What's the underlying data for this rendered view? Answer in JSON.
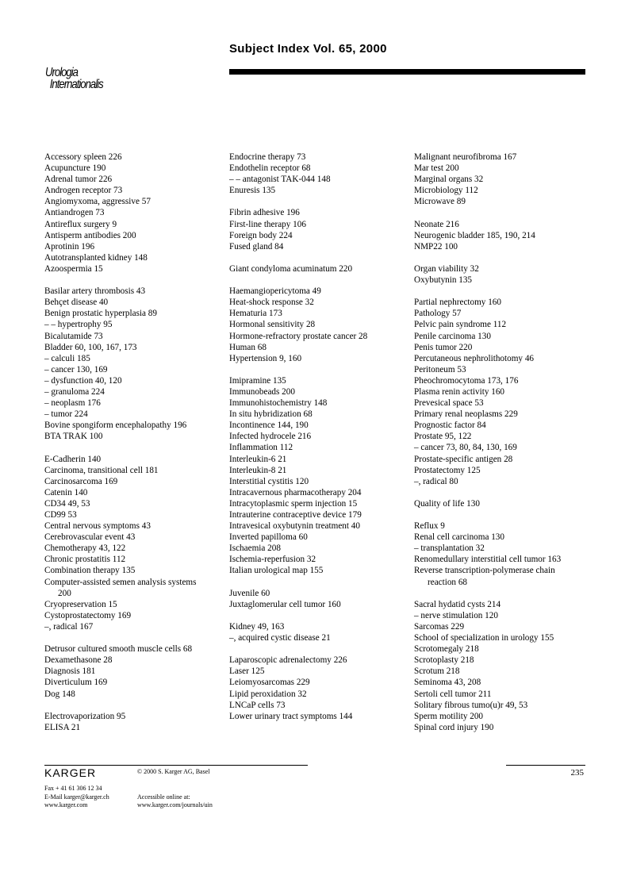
{
  "header": {
    "title": "Subject Index Vol. 65, 2000",
    "journal_logo": [
      "Urologia",
      "Internationalis"
    ]
  },
  "columns": [
    [
      "Accessory spleen  226",
      "Acupuncture  190",
      "Adrenal tumor  226",
      "Androgen receptor  73",
      "Angiomyxoma, aggressive  57",
      "Antiandrogen  73",
      "Antireflux surgery  9",
      "Antisperm antibodies  200",
      "Aprotinin  196",
      "Autotransplanted kidney  148",
      "Azoospermia  15",
      "",
      "Basilar artery thrombosis  43",
      "Behçet disease  40",
      "Benign prostatic hyperplasia  89",
      "–  –  hypertrophy  95",
      "Bicalutamide  73",
      "Bladder  60, 100, 167, 173",
      "–  calculi  185",
      "–  cancer  130, 169",
      "–  dysfunction  40, 120",
      "–  granuloma  224",
      "–  neoplasm  176",
      "–  tumor  224",
      "Bovine spongiform encephalopathy  196",
      "BTA TRAK  100",
      "",
      "E-Cadherin  140",
      "Carcinoma, transitional cell  181",
      "Carcinosarcoma  169",
      "Catenin  140",
      "CD34  49, 53",
      "CD99  53",
      "Central nervous symptoms  43",
      "Cerebrovascular event  43",
      "Chemotherapy  43, 122",
      "Chronic prostatitis  112",
      "Combination therapy  135",
      "Computer-assisted semen analysis systems",
      {
        "cont": "200"
      },
      "Cryopreservation  15",
      "Cystoprostatectomy  169",
      "–,  radical  167",
      "",
      "Detrusor cultured smooth muscle cells  68",
      "Dexamethasone  28",
      "Diagnosis  181",
      "Diverticulum  169",
      "Dog  148",
      "",
      "Electrovaporization  95",
      "ELISA  21"
    ],
    [
      "Endocrine therapy  73",
      "Endothelin receptor  68",
      "–  –  antagonist TAK-044  148",
      "Enuresis  135",
      "",
      "Fibrin adhesive  196",
      "First-line therapy  106",
      "Foreign body  224",
      "Fused gland  84",
      "",
      "Giant condyloma acuminatum  220",
      "",
      "Haemangiopericytoma  49",
      "Heat-shock response  32",
      "Hematuria  173",
      "Hormonal sensitivity  28",
      "Hormone-refractory prostate cancer  28",
      "Human  68",
      "Hypertension  9, 160",
      "",
      "Imipramine  135",
      "Immunobeads  200",
      "Immunohistochemistry  148",
      "In situ hybridization  68",
      "Incontinence  144, 190",
      "Infected hydrocele  216",
      "Inflammation  112",
      "Interleukin-6  21",
      "Interleukin-8  21",
      "Interstitial cystitis  120",
      "Intracavernous pharmacotherapy  204",
      "Intracytoplasmic sperm injection  15",
      "Intrauterine contraceptive device  179",
      "Intravesical oxybutynin treatment  40",
      "Inverted papilloma  60",
      "Ischaemia  208",
      "Ischemia-reperfusion  32",
      "Italian urological map  155",
      "",
      "Juvenile  60",
      "Juxtaglomerular cell tumor  160",
      "",
      "Kidney  49, 163",
      "–,  acquired cystic disease  21",
      "",
      "Laparoscopic adrenalectomy  226",
      "Laser  125",
      "Leiomyosarcomas  229",
      "Lipid peroxidation  32",
      "LNCaP cells  73",
      "Lower urinary tract symptoms  144"
    ],
    [
      "Malignant neurofibroma  167",
      "Mar test  200",
      "Marginal organs  32",
      "Microbiology  112",
      "Microwave  89",
      "",
      "Neonate  216",
      "Neurogenic bladder  185, 190, 214",
      "NMP22  100",
      "",
      "Organ viability  32",
      "Oxybutynin  135",
      "",
      "Partial nephrectomy  160",
      "Pathology  57",
      "Pelvic pain syndrome  112",
      "Penile carcinoma  130",
      "Penis tumor  220",
      "Percutaneous nephrolithotomy  46",
      "Peritoneum  53",
      "Pheochromocytoma  173, 176",
      "Plasma renin activity  160",
      "Prevesical space  53",
      "Primary renal neoplasms  229",
      "Prognostic factor  84",
      "Prostate  95, 122",
      "–  cancer  73, 80, 84, 130, 169",
      "Prostate-specific antigen  28",
      "Prostatectomy  125",
      "–,  radical  80",
      "",
      "Quality of life  130",
      "",
      "Reflux  9",
      "Renal cell carcinoma  130",
      "–  transplantation  32",
      "Renomedullary interstitial cell tumor  163",
      "Reverse transcription-polymerase chain",
      {
        "cont": "reaction  68"
      },
      "",
      "Sacral hydatid cysts  214",
      "–  nerve stimulation  120",
      "Sarcomas  229",
      "School of specialization in urology  155",
      "Scrotomegaly  218",
      "Scrotoplasty  218",
      "Scrotum  218",
      "Seminoma  43, 208",
      "Sertoli cell tumor  211",
      "Solitary fibrous tumo(u)r  49, 53",
      "Sperm motility  200",
      "Spinal cord injury  190"
    ]
  ],
  "footer": {
    "publisher": "KARGER",
    "copyright": "© 2000 S. Karger AG, Basel",
    "fax": "Fax + 41 61 306 12 34",
    "email": "E-Mail karger@karger.ch",
    "website": "www.karger.com",
    "online_label": "Accessible online at:",
    "online_url": "www.karger.com/journals/uin",
    "page_number": "235"
  }
}
